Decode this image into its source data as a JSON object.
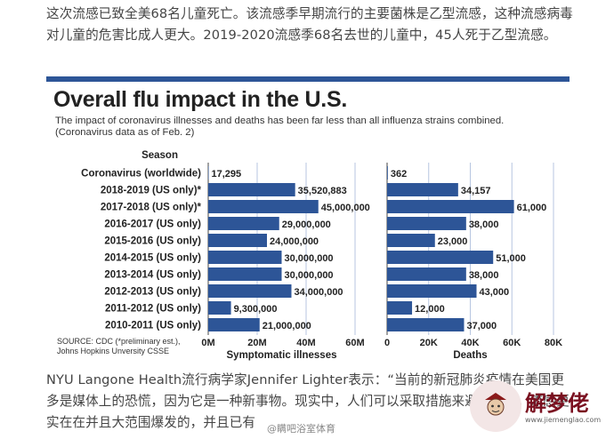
{
  "article": {
    "para_top": [
      "这次流感已致全美68名儿童死亡。该流感季早期流行的主要菌株是乙型流感，这种流感病毒",
      "对儿童的危害比成人更大。2019-2020流感季68名去世的儿童中，45人死于乙型流感。"
    ],
    "para_bottom": [
      "NYU Langone Health流行病学家Jennifer Lighter表示：“当前的新冠肺炎疫情在美国更",
      "多是媒体上的恐慌，因为它是一种新事物。现实中，人们可以采取措施来避免流感，流感更",
      "实在在并且大范围爆发的，并且已有"
    ],
    "overlay_text": "@瞒吧浴室体育"
  },
  "watermark": {
    "name": "解梦佬",
    "url": "www.jiemenglao.com"
  },
  "colors": {
    "bar": "#2d5597",
    "accent": "#2d5597",
    "grid": "#b7c6e0"
  },
  "chart_data": {
    "type": "bar",
    "title": "Overall flu impact in the U.S.",
    "subtitle_line1": "The impact of coronavirus illnesses and deaths has been far less than all influenza strains combined.",
    "subtitle_line2": "(Coronavirus data as of Feb. 2)",
    "category_header": "Season",
    "categories": [
      "Coronavirus (worldwide)",
      "2018-2019 (US only)*",
      "2017-2018 (US only)*",
      "2016-2017 (US only)",
      "2015-2016 (US only)",
      "2014-2015 (US only)",
      "2013-2014 (US only)",
      "2012-2013 (US only)",
      "2011-2012 (US only)",
      "2010-2011 (US only)"
    ],
    "series": [
      {
        "name": "Symptomatic illnesses",
        "values": [
          17295,
          35520883,
          45000000,
          29000000,
          24000000,
          30000000,
          30000000,
          34000000,
          9300000,
          21000000
        ],
        "labels": [
          "17,295",
          "35,520,883",
          "45,000,000",
          "29,000,000",
          "24,000,000",
          "30,000,000",
          "30,000,000",
          "34,000,000",
          "9,300,000",
          "21,000,000"
        ],
        "xlim": [
          0,
          60000000
        ],
        "ticks": [
          "0M",
          "20M",
          "40M",
          "60M"
        ]
      },
      {
        "name": "Deaths",
        "values": [
          362,
          34157,
          61000,
          38000,
          23000,
          51000,
          38000,
          43000,
          12000,
          37000
        ],
        "labels": [
          "362",
          "34,157",
          "61,000",
          "38,000",
          "23,000",
          "51,000",
          "38,000",
          "43,000",
          "12,000",
          "37,000"
        ],
        "xlim": [
          0,
          80000
        ],
        "ticks": [
          "0",
          "20K",
          "40K",
          "60K",
          "80K"
        ]
      }
    ],
    "source": [
      "SOURCE: CDC  (*preliminary est.),",
      "Johns Hopkins Unversity CSSE"
    ]
  }
}
